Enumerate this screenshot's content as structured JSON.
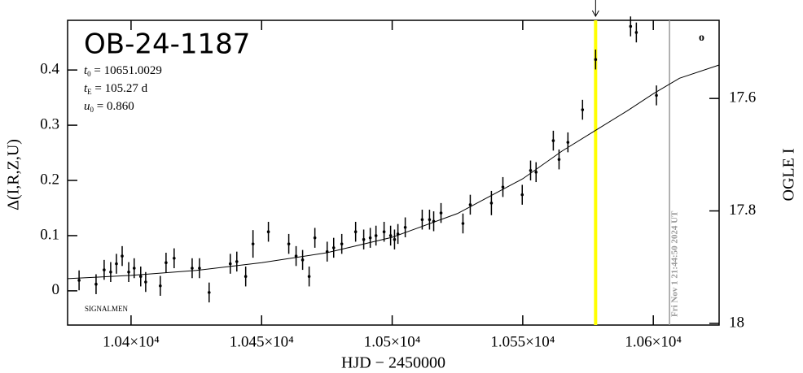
{
  "chart_data": {
    "type": "scatter",
    "title": "OB-24-1187",
    "params": [
      {
        "name": "t",
        "sub": "0",
        "text": " = 10651.0029"
      },
      {
        "name": "t",
        "sub": "E",
        "text": " = 105.27 d"
      },
      {
        "name": "u",
        "sub": "0",
        "text": " = 0.860"
      }
    ],
    "xlabel": "HJD − 2450000",
    "ylabel": "Δ(I,R,Z,U)",
    "y2label": "OGLE I",
    "footer_note": "SIGNALMEN",
    "corner_mark": "o",
    "xlim": [
      10375.7,
      10625.2
    ],
    "ylim": [
      -0.062,
      0.49
    ],
    "y2lim": [
      18.003,
      17.461
    ],
    "xticks": [
      {
        "value": 10400,
        "label": "1.04×10⁴"
      },
      {
        "value": 10450,
        "label": "1.045×10⁴"
      },
      {
        "value": 10500,
        "label": "1.05×10⁴"
      },
      {
        "value": 10550,
        "label": "1.055×10⁴"
      },
      {
        "value": 10600,
        "label": "1.06×10⁴"
      }
    ],
    "yticks": [
      0,
      0.1,
      0.2,
      0.3,
      0.4
    ],
    "y2ticks": [
      17.6,
      17.8,
      18
    ],
    "markers": [
      {
        "x": 10577.9,
        "color": "#ffff00"
      },
      {
        "x": 10606.2,
        "color": "#999999",
        "label": "Fri Nov  1 21:44:50 2024 UT"
      }
    ],
    "series": [
      {
        "type": "line",
        "color": "#000000",
        "x": [
          10375.7,
          10400,
          10425,
          10450,
          10475,
          10500,
          10525,
          10550,
          10565,
          10578,
          10590,
          10600,
          10610,
          10625.2
        ],
        "values": [
          0.022,
          0.028,
          0.037,
          0.051,
          0.069,
          0.097,
          0.14,
          0.203,
          0.253,
          0.291,
          0.326,
          0.357,
          0.385,
          0.409
        ]
      },
      {
        "type": "points",
        "color": "#000000",
        "x": [
          10380.1,
          10386.6,
          10389.7,
          10392.2,
          10394.4,
          10396.6,
          10399.1,
          10401.2,
          10403.7,
          10405.6,
          10411.2,
          10413.4,
          10416.5,
          10423.4,
          10426.2,
          10429.9,
          10438.0,
          10440.5,
          10443.9,
          10446.7,
          10452.6,
          10460.4,
          10463.2,
          10465.7,
          10468.2,
          10470.4,
          10475.1,
          10477.6,
          10480.7,
          10486.0,
          10489.1,
          10491.6,
          10493.8,
          10496.9,
          10499.4,
          10500.9,
          10502.2,
          10505.0,
          10511.5,
          10514.3,
          10515.9,
          10518.7,
          10527.1,
          10529.9,
          10538.0,
          10542.4,
          10549.8,
          10553.0,
          10555.1,
          10561.7,
          10563.9,
          10567.3,
          10572.9,
          10577.9,
          10591.3,
          10593.5,
          10601.2
        ],
        "values": [
          0.019,
          0.012,
          0.038,
          0.034,
          0.049,
          0.063,
          0.034,
          0.041,
          0.026,
          0.016,
          0.009,
          0.051,
          0.059,
          0.041,
          0.041,
          -0.003,
          0.049,
          0.053,
          0.026,
          0.085,
          0.107,
          0.085,
          0.063,
          0.056,
          0.026,
          0.096,
          0.071,
          0.078,
          0.085,
          0.107,
          0.093,
          0.096,
          0.1,
          0.107,
          0.1,
          0.093,
          0.103,
          0.115,
          0.129,
          0.129,
          0.126,
          0.141,
          0.122,
          0.156,
          0.159,
          0.188,
          0.174,
          0.218,
          0.215,
          0.272,
          0.238,
          0.269,
          0.328,
          0.419,
          0.479,
          0.468,
          0.354
        ],
        "errors": [
          0.018,
          0.018,
          0.018,
          0.018,
          0.018,
          0.018,
          0.018,
          0.018,
          0.018,
          0.018,
          0.018,
          0.018,
          0.018,
          0.018,
          0.018,
          0.018,
          0.018,
          0.018,
          0.018,
          0.025,
          0.018,
          0.018,
          0.018,
          0.018,
          0.018,
          0.018,
          0.018,
          0.018,
          0.018,
          0.018,
          0.018,
          0.018,
          0.018,
          0.018,
          0.018,
          0.018,
          0.018,
          0.018,
          0.018,
          0.018,
          0.018,
          0.018,
          0.018,
          0.018,
          0.022,
          0.018,
          0.018,
          0.018,
          0.018,
          0.018,
          0.018,
          0.018,
          0.018,
          0.018,
          0.018,
          0.018,
          0.018
        ]
      }
    ]
  }
}
